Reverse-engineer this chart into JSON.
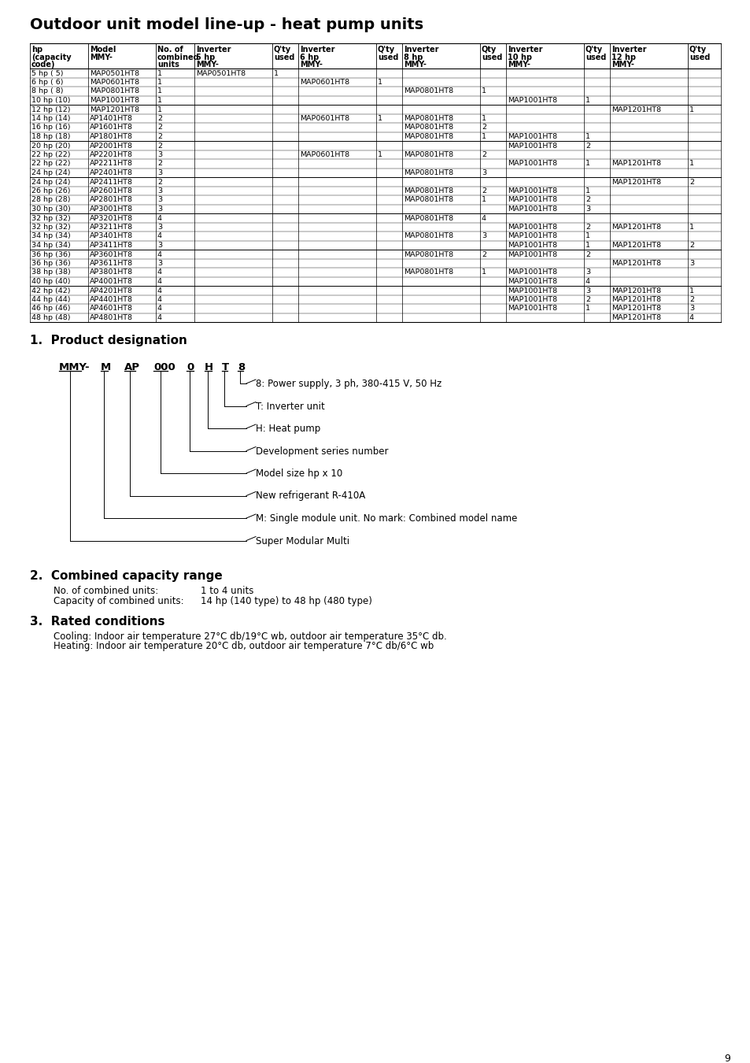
{
  "title": "Outdoor unit model line-up - heat pump units",
  "bg_color": "#ffffff",
  "table_rows": [
    [
      "5 hp ( 5)",
      "MAP0501HT8",
      "1",
      "MAP0501HT8",
      "1",
      "",
      "",
      "",
      "",
      "",
      "",
      "",
      ""
    ],
    [
      "6 hp ( 6)",
      "MAP0601HT8",
      "1",
      "",
      "",
      "MAP0601HT8",
      "1",
      "",
      "",
      "",
      "",
      "",
      ""
    ],
    [
      "8 hp ( 8)",
      "MAP0801HT8",
      "1",
      "",
      "",
      "",
      "",
      "MAP0801HT8",
      "1",
      "",
      "",
      "",
      ""
    ],
    [
      "10 hp (10)",
      "MAP1001HT8",
      "1",
      "",
      "",
      "",
      "",
      "",
      "",
      "MAP1001HT8",
      "1",
      "",
      ""
    ],
    [
      "12 hp (12)",
      "MAP1201HT8",
      "1",
      "",
      "",
      "",
      "",
      "",
      "",
      "",
      "",
      "MAP1201HT8",
      "1"
    ],
    [
      "14 hp (14)",
      "AP1401HT8",
      "2",
      "",
      "",
      "MAP0601HT8",
      "1",
      "MAP0801HT8",
      "1",
      "",
      "",
      "",
      ""
    ],
    [
      "16 hp (16)",
      "AP1601HT8",
      "2",
      "",
      "",
      "",
      "",
      "MAP0801HT8",
      "2",
      "",
      "",
      "",
      ""
    ],
    [
      "18 hp (18)",
      "AP1801HT8",
      "2",
      "",
      "",
      "",
      "",
      "MAP0801HT8",
      "1",
      "MAP1001HT8",
      "1",
      "",
      ""
    ],
    [
      "20 hp (20)",
      "AP2001HT8",
      "2",
      "",
      "",
      "",
      "",
      "",
      "",
      "MAP1001HT8",
      "2",
      "",
      ""
    ],
    [
      "22 hp (22)",
      "AP2201HT8",
      "3",
      "",
      "",
      "MAP0601HT8",
      "1",
      "MAP0801HT8",
      "2",
      "",
      "",
      "",
      ""
    ],
    [
      "22 hp (22)",
      "AP2211HT8",
      "2",
      "",
      "",
      "",
      "",
      "",
      "",
      "MAP1001HT8",
      "1",
      "MAP1201HT8",
      "1"
    ],
    [
      "24 hp (24)",
      "AP2401HT8",
      "3",
      "",
      "",
      "",
      "",
      "MAP0801HT8",
      "3",
      "",
      "",
      "",
      ""
    ],
    [
      "24 hp (24)",
      "AP2411HT8",
      "2",
      "",
      "",
      "",
      "",
      "",
      "",
      "",
      "",
      "MAP1201HT8",
      "2"
    ],
    [
      "26 hp (26)",
      "AP2601HT8",
      "3",
      "",
      "",
      "",
      "",
      "MAP0801HT8",
      "2",
      "MAP1001HT8",
      "1",
      "",
      ""
    ],
    [
      "28 hp (28)",
      "AP2801HT8",
      "3",
      "",
      "",
      "",
      "",
      "MAP0801HT8",
      "1",
      "MAP1001HT8",
      "2",
      "",
      ""
    ],
    [
      "30 hp (30)",
      "AP3001HT8",
      "3",
      "",
      "",
      "",
      "",
      "",
      "",
      "MAP1001HT8",
      "3",
      "",
      ""
    ],
    [
      "32 hp (32)",
      "AP3201HT8",
      "4",
      "",
      "",
      "",
      "",
      "MAP0801HT8",
      "4",
      "",
      "",
      "",
      ""
    ],
    [
      "32 hp (32)",
      "AP3211HT8",
      "3",
      "",
      "",
      "",
      "",
      "",
      "",
      "MAP1001HT8",
      "2",
      "MAP1201HT8",
      "1"
    ],
    [
      "34 hp (34)",
      "AP3401HT8",
      "4",
      "",
      "",
      "",
      "",
      "MAP0801HT8",
      "3",
      "MAP1001HT8",
      "1",
      "",
      ""
    ],
    [
      "34 hp (34)",
      "AP3411HT8",
      "3",
      "",
      "",
      "",
      "",
      "",
      "",
      "MAP1001HT8",
      "1",
      "MAP1201HT8",
      "2"
    ],
    [
      "36 hp (36)",
      "AP3601HT8",
      "4",
      "",
      "",
      "",
      "",
      "MAP0801HT8",
      "2",
      "MAP1001HT8",
      "2",
      "",
      ""
    ],
    [
      "36 hp (36)",
      "AP3611HT8",
      "3",
      "",
      "",
      "",
      "",
      "",
      "",
      "",
      "",
      "MAP1201HT8",
      "3"
    ],
    [
      "38 hp (38)",
      "AP3801HT8",
      "4",
      "",
      "",
      "",
      "",
      "MAP0801HT8",
      "1",
      "MAP1001HT8",
      "3",
      "",
      ""
    ],
    [
      "40 hp (40)",
      "AP4001HT8",
      "4",
      "",
      "",
      "",
      "",
      "",
      "",
      "MAP1001HT8",
      "4",
      "",
      ""
    ],
    [
      "42 hp (42)",
      "AP4201HT8",
      "4",
      "",
      "",
      "",
      "",
      "",
      "",
      "MAP1001HT8",
      "3",
      "MAP1201HT8",
      "1"
    ],
    [
      "44 hp (44)",
      "AP4401HT8",
      "4",
      "",
      "",
      "",
      "",
      "",
      "",
      "MAP1001HT8",
      "2",
      "MAP1201HT8",
      "2"
    ],
    [
      "46 hp (46)",
      "AP4601HT8",
      "4",
      "",
      "",
      "",
      "",
      "",
      "",
      "MAP1001HT8",
      "1",
      "MAP1201HT8",
      "3"
    ],
    [
      "48 hp (48)",
      "AP4801HT8",
      "4",
      "",
      "",
      "",
      "",
      "",
      "",
      "",
      "",
      "MAP1201HT8",
      "4"
    ]
  ],
  "group_separators_after": [
    3,
    7,
    11,
    15,
    19,
    23,
    27
  ],
  "section1_title": "1.  Product designation",
  "designation_labels": [
    "MMY-",
    "M",
    "AP",
    "000",
    "0",
    "H",
    "T",
    "8"
  ],
  "designation_descriptions": [
    "8: Power supply, 3 ph, 380-415 V, 50 Hz",
    "T: Inverter unit",
    "H: Heat pump",
    "Development series number",
    "Model size hp x 10",
    "New refrigerant R-410A",
    "M: Single module unit. No mark: Combined model name",
    "Super Modular Multi"
  ],
  "section2_title": "2.  Combined capacity range",
  "combined_units_label": "No. of combined units:",
  "combined_units_value": "1 to 4 units",
  "capacity_label": "Capacity of combined units:",
  "capacity_value": "14 hp (140 type) to 48 hp (480 type)",
  "section3_title": "3.  Rated conditions",
  "cooling_text": "Cooling: Indoor air temperature 27°C db/19°C wb, outdoor air temperature 35°C db.",
  "heating_text": "Heating: Indoor air temperature 20°C db, outdoor air temperature 7°C db/6°C wb",
  "page_number": "9"
}
